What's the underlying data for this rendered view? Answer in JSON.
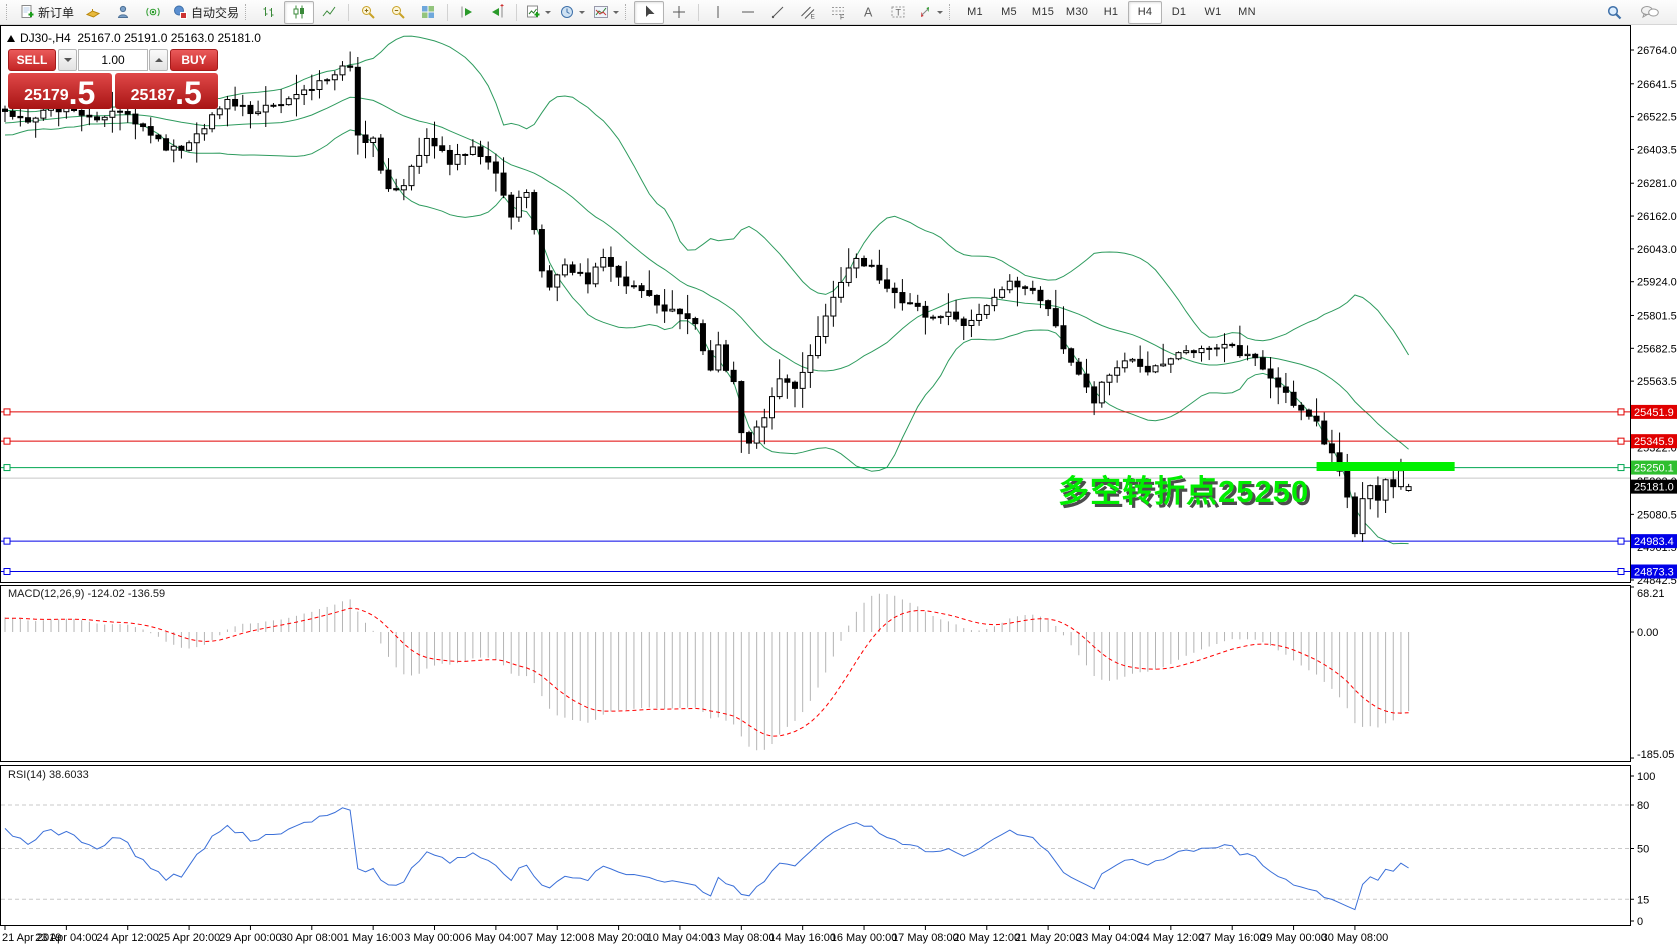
{
  "toolbar": {
    "new_order_label": "新订单",
    "autotrade_label": "自动交易",
    "icons": [
      "new-order",
      "market-watch",
      "profile",
      "signals",
      "autotrade",
      "bar-chart",
      "candlestick",
      "line-chart",
      "zoom-in",
      "zoom-out",
      "tile-windows",
      "auto-scroll",
      "chart-shift",
      "new-chart",
      "profiles-clock",
      "indicators",
      "cursor",
      "crosshair",
      "vertical-line",
      "horizontal-line",
      "trendline",
      "equidistant-channel",
      "fibonacci",
      "text",
      "text-label",
      "arrows",
      "search",
      "chat"
    ],
    "timeframes": [
      "M1",
      "M5",
      "M15",
      "M30",
      "H1",
      "H4",
      "D1",
      "W1",
      "MN"
    ],
    "active_timeframe": "H4",
    "active_chart_type": "candlestick"
  },
  "trade_panel": {
    "symbol_line": "DJ30-,H4  25167.0 25191.0 25163.0 25181.0",
    "sell_label": "SELL",
    "buy_label": "BUY",
    "volume": "1.00",
    "sell_price_main": "25179",
    "sell_price_fraction": ".5",
    "buy_price_main": "25187",
    "buy_price_fraction": ".5"
  },
  "annotation": {
    "text": "多空转折点25250",
    "color": "#00ee00",
    "shadow_color": "#4d4d4d"
  },
  "colors": {
    "resistance_red": "#e00000",
    "pivot_green": "#00a651",
    "pivot_green_label": "#2fbf2f",
    "support_blue": "#0000e8",
    "gray_line": "#c8c8c8",
    "current_price_label_bg": "#000000",
    "highlight_green": "#00f000",
    "panel_red": "#c42525"
  },
  "chart_data": {
    "type": "candlestick",
    "symbol": "DJ30-",
    "timeframe": "H4",
    "ohlc_current": {
      "open": 25167.0,
      "high": 25191.0,
      "low": 25163.0,
      "close": 25181.0
    },
    "bars_total": 184,
    "price_axis": {
      "ticks": [
        "26764.0",
        "26641.5",
        "26522.5",
        "26403.5",
        "26281.0",
        "26162.0",
        "26043.0",
        "25924.0",
        "25801.5",
        "25682.5",
        "25563.5",
        "25443.5",
        "25322.0",
        "25202.0",
        "25080.5",
        "24961.5",
        "24842.5"
      ]
    },
    "time_axis": {
      "labels": [
        "21 Apr 2019",
        "23 Apr 04:00",
        "24 Apr 12:00",
        "25 Apr 20:00",
        "29 Apr 00:00",
        "30 Apr 08:00",
        "1 May 16:00",
        "3 May 00:00",
        "6 May 04:00",
        "7 May 12:00",
        "8 May 20:00",
        "10 May 04:00",
        "13 May 08:00",
        "14 May 16:00",
        "16 May 00:00",
        "17 May 08:00",
        "20 May 12:00",
        "21 May 20:00",
        "23 May 04:00",
        "24 May 12:00",
        "27 May 16:00",
        "29 May 00:00",
        "30 May 08:00"
      ]
    },
    "price_path": [
      [
        0,
        26540
      ],
      [
        3,
        26505
      ],
      [
        6,
        26565
      ],
      [
        9,
        26530
      ],
      [
        12,
        26505
      ],
      [
        15,
        26550
      ],
      [
        18,
        26490
      ],
      [
        21,
        26405
      ],
      [
        23,
        26415
      ],
      [
        26,
        26490
      ],
      [
        29,
        26570
      ],
      [
        32,
        26545
      ],
      [
        35,
        26560
      ],
      [
        38,
        26590
      ],
      [
        41,
        26650
      ],
      [
        44,
        26695
      ],
      [
        45,
        26700
      ],
      [
        46,
        26450
      ],
      [
        48,
        26435
      ],
      [
        50,
        26250
      ],
      [
        52,
        26280
      ],
      [
        55,
        26450
      ],
      [
        58,
        26360
      ],
      [
        61,
        26420
      ],
      [
        64,
        26320
      ],
      [
        66,
        26170
      ],
      [
        68,
        26260
      ],
      [
        70,
        25950
      ],
      [
        71,
        25905
      ],
      [
        73,
        25975
      ],
      [
        76,
        25930
      ],
      [
        78,
        26005
      ],
      [
        81,
        25920
      ],
      [
        83,
        25880
      ],
      [
        85,
        25840
      ],
      [
        88,
        25795
      ],
      [
        90,
        25760
      ],
      [
        92,
        25615
      ],
      [
        93,
        25680
      ],
      [
        95,
        25550
      ],
      [
        96,
        25380
      ],
      [
        97,
        25345
      ],
      [
        99,
        25445
      ],
      [
        101,
        25560
      ],
      [
        103,
        25530
      ],
      [
        105,
        25655
      ],
      [
        107,
        25790
      ],
      [
        109,
        25915
      ],
      [
        111,
        26005
      ],
      [
        113,
        25970
      ],
      [
        115,
        25900
      ],
      [
        117,
        25845
      ],
      [
        119,
        25825
      ],
      [
        121,
        25790
      ],
      [
        123,
        25815
      ],
      [
        125,
        25775
      ],
      [
        127,
        25800
      ],
      [
        129,
        25880
      ],
      [
        131,
        25930
      ],
      [
        133,
        25885
      ],
      [
        134,
        25890
      ],
      [
        136,
        25820
      ],
      [
        138,
        25690
      ],
      [
        140,
        25580
      ],
      [
        142,
        25480
      ],
      [
        143,
        25560
      ],
      [
        145,
        25620
      ],
      [
        147,
        25655
      ],
      [
        149,
        25600
      ],
      [
        151,
        25625
      ],
      [
        153,
        25655
      ],
      [
        155,
        25665
      ],
      [
        157,
        25690
      ],
      [
        159,
        25705
      ],
      [
        161,
        25660
      ],
      [
        163,
        25640
      ],
      [
        165,
        25565
      ],
      [
        167,
        25510
      ],
      [
        169,
        25470
      ],
      [
        171,
        25430
      ],
      [
        172,
        25340
      ],
      [
        174,
        25250
      ],
      [
        175,
        25135
      ],
      [
        176,
        25010
      ],
      [
        177,
        25150
      ],
      [
        178,
        25195
      ],
      [
        179,
        25135
      ],
      [
        180,
        25215
      ],
      [
        181,
        25170
      ],
      [
        182,
        25235
      ],
      [
        183,
        25181
      ]
    ],
    "levels": [
      {
        "price": 25451.9,
        "label": "25451.9",
        "color": "#e00000",
        "label_bg": "#e00000"
      },
      {
        "price": 25345.9,
        "label": "25345.9",
        "color": "#e00000",
        "label_bg": "#e00000"
      },
      {
        "price": 25250.1,
        "label": "25250.1",
        "color": "#00a651",
        "label_bg": "#2fbf2f"
      },
      {
        "price": 25212.0,
        "label": null,
        "color": "#c8c8c8",
        "label_bg": null
      },
      {
        "price": 24983.4,
        "label": "24983.4",
        "color": "#0000e8",
        "label_bg": "#0000e8"
      },
      {
        "price": 24873.3,
        "label": "24873.3",
        "color": "#0000e8",
        "label_bg": "#0000e8"
      }
    ],
    "current_price": {
      "value": 25181.0,
      "label": "25181.0"
    },
    "highlight": {
      "price": 25254,
      "from_bar": 171,
      "to_bar": 189,
      "color": "#00f000"
    },
    "bollinger": {
      "period": 20,
      "deviation": 2,
      "color": "#2e9b5e"
    },
    "macd": {
      "label": "MACD(12,26,9)",
      "values_text": "-124.02 -136.59",
      "axis": [
        {
          "text": "68.21",
          "value": 68.21
        },
        {
          "text": "0.00",
          "value": 0
        },
        {
          "text": "-185.05",
          "value": -185.05
        }
      ],
      "hist_color": "#b4b4b4",
      "signal_color": "#ff0000"
    },
    "rsi": {
      "label": "RSI(14)",
      "value_text": "38.6033",
      "axis": [
        {
          "text": "100",
          "value": 100
        },
        {
          "text": "80",
          "value": 80
        },
        {
          "text": "50",
          "value": 50
        },
        {
          "text": "15",
          "value": 15
        },
        {
          "text": "0",
          "value": 0
        }
      ],
      "levels": [
        80,
        50,
        15
      ],
      "color": "#3a6fd8"
    }
  }
}
